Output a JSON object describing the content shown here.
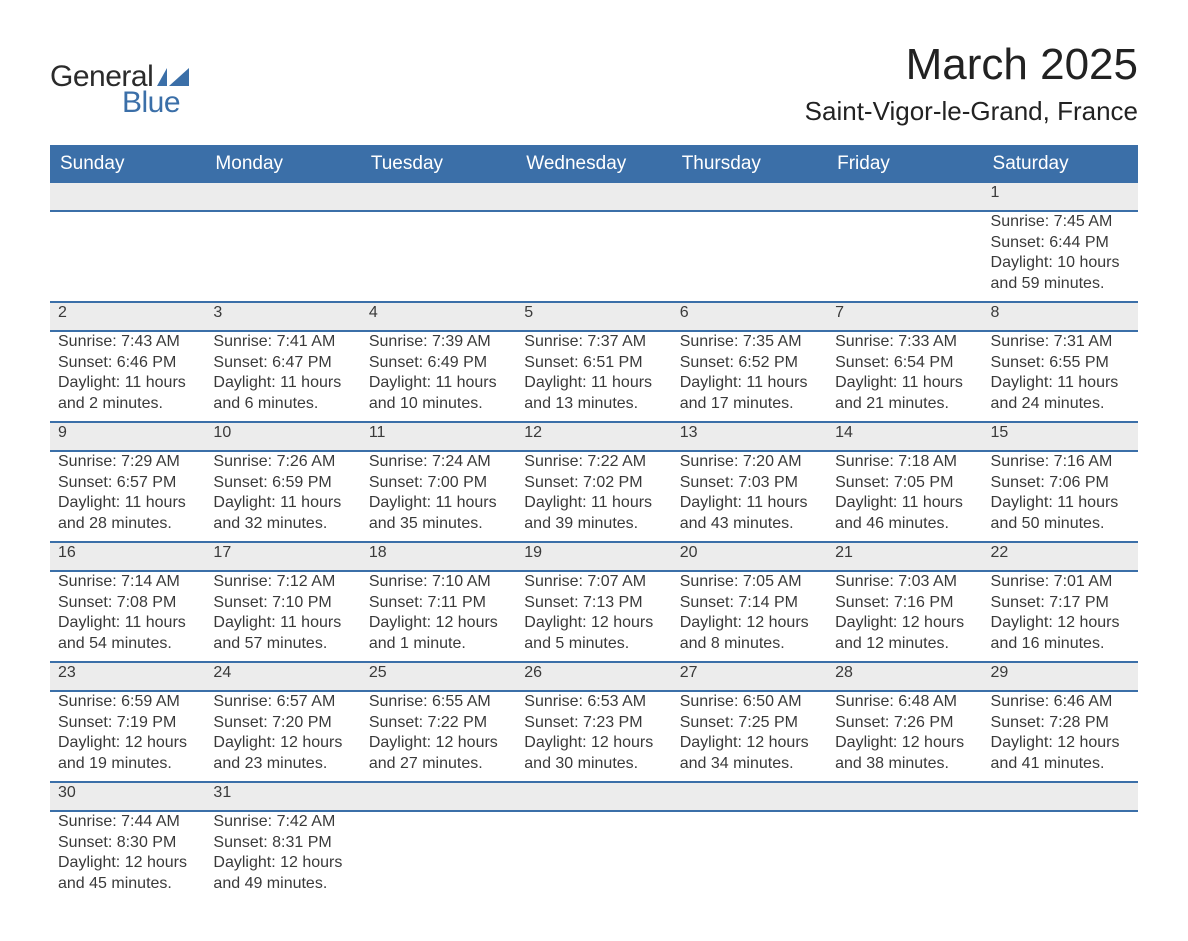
{
  "brand": {
    "part1": "General",
    "part2": "Blue"
  },
  "title": "March 2025",
  "location": "Saint-Vigor-le-Grand, France",
  "colors": {
    "header_bg": "#3b6fa8",
    "header_text": "#ffffff",
    "daynum_bg": "#ececec",
    "text": "#3a3a3a",
    "brand_blue": "#3b6fa8",
    "page_bg": "#ffffff",
    "row_border": "#3b6fa8"
  },
  "typography": {
    "title_fontsize": 44,
    "location_fontsize": 26,
    "dayheader_fontsize": 19,
    "cell_fontsize": 16,
    "logo_fontsize": 30
  },
  "day_headers": [
    "Sunday",
    "Monday",
    "Tuesday",
    "Wednesday",
    "Thursday",
    "Friday",
    "Saturday"
  ],
  "weeks": [
    [
      null,
      null,
      null,
      null,
      null,
      null,
      {
        "n": "1",
        "sr": "Sunrise: 7:45 AM",
        "ss": "Sunset: 6:44 PM",
        "d1": "Daylight: 10 hours",
        "d2": "and 59 minutes."
      }
    ],
    [
      {
        "n": "2",
        "sr": "Sunrise: 7:43 AM",
        "ss": "Sunset: 6:46 PM",
        "d1": "Daylight: 11 hours",
        "d2": "and 2 minutes."
      },
      {
        "n": "3",
        "sr": "Sunrise: 7:41 AM",
        "ss": "Sunset: 6:47 PM",
        "d1": "Daylight: 11 hours",
        "d2": "and 6 minutes."
      },
      {
        "n": "4",
        "sr": "Sunrise: 7:39 AM",
        "ss": "Sunset: 6:49 PM",
        "d1": "Daylight: 11 hours",
        "d2": "and 10 minutes."
      },
      {
        "n": "5",
        "sr": "Sunrise: 7:37 AM",
        "ss": "Sunset: 6:51 PM",
        "d1": "Daylight: 11 hours",
        "d2": "and 13 minutes."
      },
      {
        "n": "6",
        "sr": "Sunrise: 7:35 AM",
        "ss": "Sunset: 6:52 PM",
        "d1": "Daylight: 11 hours",
        "d2": "and 17 minutes."
      },
      {
        "n": "7",
        "sr": "Sunrise: 7:33 AM",
        "ss": "Sunset: 6:54 PM",
        "d1": "Daylight: 11 hours",
        "d2": "and 21 minutes."
      },
      {
        "n": "8",
        "sr": "Sunrise: 7:31 AM",
        "ss": "Sunset: 6:55 PM",
        "d1": "Daylight: 11 hours",
        "d2": "and 24 minutes."
      }
    ],
    [
      {
        "n": "9",
        "sr": "Sunrise: 7:29 AM",
        "ss": "Sunset: 6:57 PM",
        "d1": "Daylight: 11 hours",
        "d2": "and 28 minutes."
      },
      {
        "n": "10",
        "sr": "Sunrise: 7:26 AM",
        "ss": "Sunset: 6:59 PM",
        "d1": "Daylight: 11 hours",
        "d2": "and 32 minutes."
      },
      {
        "n": "11",
        "sr": "Sunrise: 7:24 AM",
        "ss": "Sunset: 7:00 PM",
        "d1": "Daylight: 11 hours",
        "d2": "and 35 minutes."
      },
      {
        "n": "12",
        "sr": "Sunrise: 7:22 AM",
        "ss": "Sunset: 7:02 PM",
        "d1": "Daylight: 11 hours",
        "d2": "and 39 minutes."
      },
      {
        "n": "13",
        "sr": "Sunrise: 7:20 AM",
        "ss": "Sunset: 7:03 PM",
        "d1": "Daylight: 11 hours",
        "d2": "and 43 minutes."
      },
      {
        "n": "14",
        "sr": "Sunrise: 7:18 AM",
        "ss": "Sunset: 7:05 PM",
        "d1": "Daylight: 11 hours",
        "d2": "and 46 minutes."
      },
      {
        "n": "15",
        "sr": "Sunrise: 7:16 AM",
        "ss": "Sunset: 7:06 PM",
        "d1": "Daylight: 11 hours",
        "d2": "and 50 minutes."
      }
    ],
    [
      {
        "n": "16",
        "sr": "Sunrise: 7:14 AM",
        "ss": "Sunset: 7:08 PM",
        "d1": "Daylight: 11 hours",
        "d2": "and 54 minutes."
      },
      {
        "n": "17",
        "sr": "Sunrise: 7:12 AM",
        "ss": "Sunset: 7:10 PM",
        "d1": "Daylight: 11 hours",
        "d2": "and 57 minutes."
      },
      {
        "n": "18",
        "sr": "Sunrise: 7:10 AM",
        "ss": "Sunset: 7:11 PM",
        "d1": "Daylight: 12 hours",
        "d2": "and 1 minute."
      },
      {
        "n": "19",
        "sr": "Sunrise: 7:07 AM",
        "ss": "Sunset: 7:13 PM",
        "d1": "Daylight: 12 hours",
        "d2": "and 5 minutes."
      },
      {
        "n": "20",
        "sr": "Sunrise: 7:05 AM",
        "ss": "Sunset: 7:14 PM",
        "d1": "Daylight: 12 hours",
        "d2": "and 8 minutes."
      },
      {
        "n": "21",
        "sr": "Sunrise: 7:03 AM",
        "ss": "Sunset: 7:16 PM",
        "d1": "Daylight: 12 hours",
        "d2": "and 12 minutes."
      },
      {
        "n": "22",
        "sr": "Sunrise: 7:01 AM",
        "ss": "Sunset: 7:17 PM",
        "d1": "Daylight: 12 hours",
        "d2": "and 16 minutes."
      }
    ],
    [
      {
        "n": "23",
        "sr": "Sunrise: 6:59 AM",
        "ss": "Sunset: 7:19 PM",
        "d1": "Daylight: 12 hours",
        "d2": "and 19 minutes."
      },
      {
        "n": "24",
        "sr": "Sunrise: 6:57 AM",
        "ss": "Sunset: 7:20 PM",
        "d1": "Daylight: 12 hours",
        "d2": "and 23 minutes."
      },
      {
        "n": "25",
        "sr": "Sunrise: 6:55 AM",
        "ss": "Sunset: 7:22 PM",
        "d1": "Daylight: 12 hours",
        "d2": "and 27 minutes."
      },
      {
        "n": "26",
        "sr": "Sunrise: 6:53 AM",
        "ss": "Sunset: 7:23 PM",
        "d1": "Daylight: 12 hours",
        "d2": "and 30 minutes."
      },
      {
        "n": "27",
        "sr": "Sunrise: 6:50 AM",
        "ss": "Sunset: 7:25 PM",
        "d1": "Daylight: 12 hours",
        "d2": "and 34 minutes."
      },
      {
        "n": "28",
        "sr": "Sunrise: 6:48 AM",
        "ss": "Sunset: 7:26 PM",
        "d1": "Daylight: 12 hours",
        "d2": "and 38 minutes."
      },
      {
        "n": "29",
        "sr": "Sunrise: 6:46 AM",
        "ss": "Sunset: 7:28 PM",
        "d1": "Daylight: 12 hours",
        "d2": "and 41 minutes."
      }
    ],
    [
      {
        "n": "30",
        "sr": "Sunrise: 7:44 AM",
        "ss": "Sunset: 8:30 PM",
        "d1": "Daylight: 12 hours",
        "d2": "and 45 minutes."
      },
      {
        "n": "31",
        "sr": "Sunrise: 7:42 AM",
        "ss": "Sunset: 8:31 PM",
        "d1": "Daylight: 12 hours",
        "d2": "and 49 minutes."
      },
      null,
      null,
      null,
      null,
      null
    ]
  ]
}
